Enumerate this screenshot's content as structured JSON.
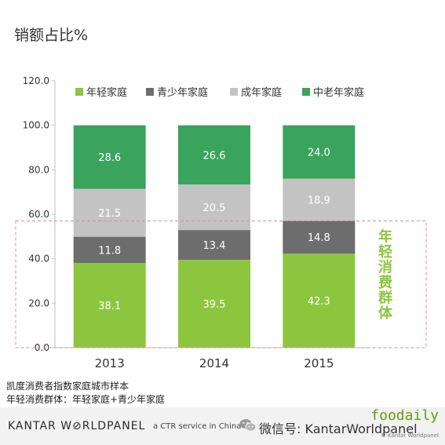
{
  "title": "销额占比%",
  "chart_data": {
    "type": "bar",
    "stacked": true,
    "categories": [
      "2013",
      "2014",
      "2015"
    ],
    "series": [
      {
        "name": "年轻家庭",
        "color": "#8cc63f",
        "values": [
          38.1,
          39.5,
          42.3
        ]
      },
      {
        "name": "青少年家庭",
        "color": "#6d6d6d",
        "values": [
          11.8,
          13.4,
          14.8
        ]
      },
      {
        "name": "成年家庭",
        "color": "#c3c3c3",
        "values": [
          21.5,
          20.5,
          18.9
        ]
      },
      {
        "name": "中老年家庭",
        "color": "#3aa35c",
        "values": [
          28.6,
          26.6,
          24.0
        ]
      }
    ],
    "yticks": [
      "0.0",
      "20.0",
      "40.0",
      "60.0",
      "80.0",
      "100.0",
      "120.0"
    ],
    "ylim": [
      0,
      120
    ],
    "legend_position": "top",
    "annotation": "年轻消费群体",
    "annotation_color": "#8cc63f",
    "annotation_box": "dashed",
    "annotation_range": [
      0,
      57
    ]
  },
  "notes": {
    "line1": "凯度消费者指数家庭城市样本",
    "line2": "年轻消费群体：年轻家庭+青少年家庭"
  },
  "footer": {
    "brand": "KANTAR W⊘RLDPANEL",
    "brand_sub": "a CTR service in China",
    "wechat": "微信号: KantarWorldpanel",
    "site": "foodaily",
    "copyright": "© Kantar Worldpanel"
  }
}
